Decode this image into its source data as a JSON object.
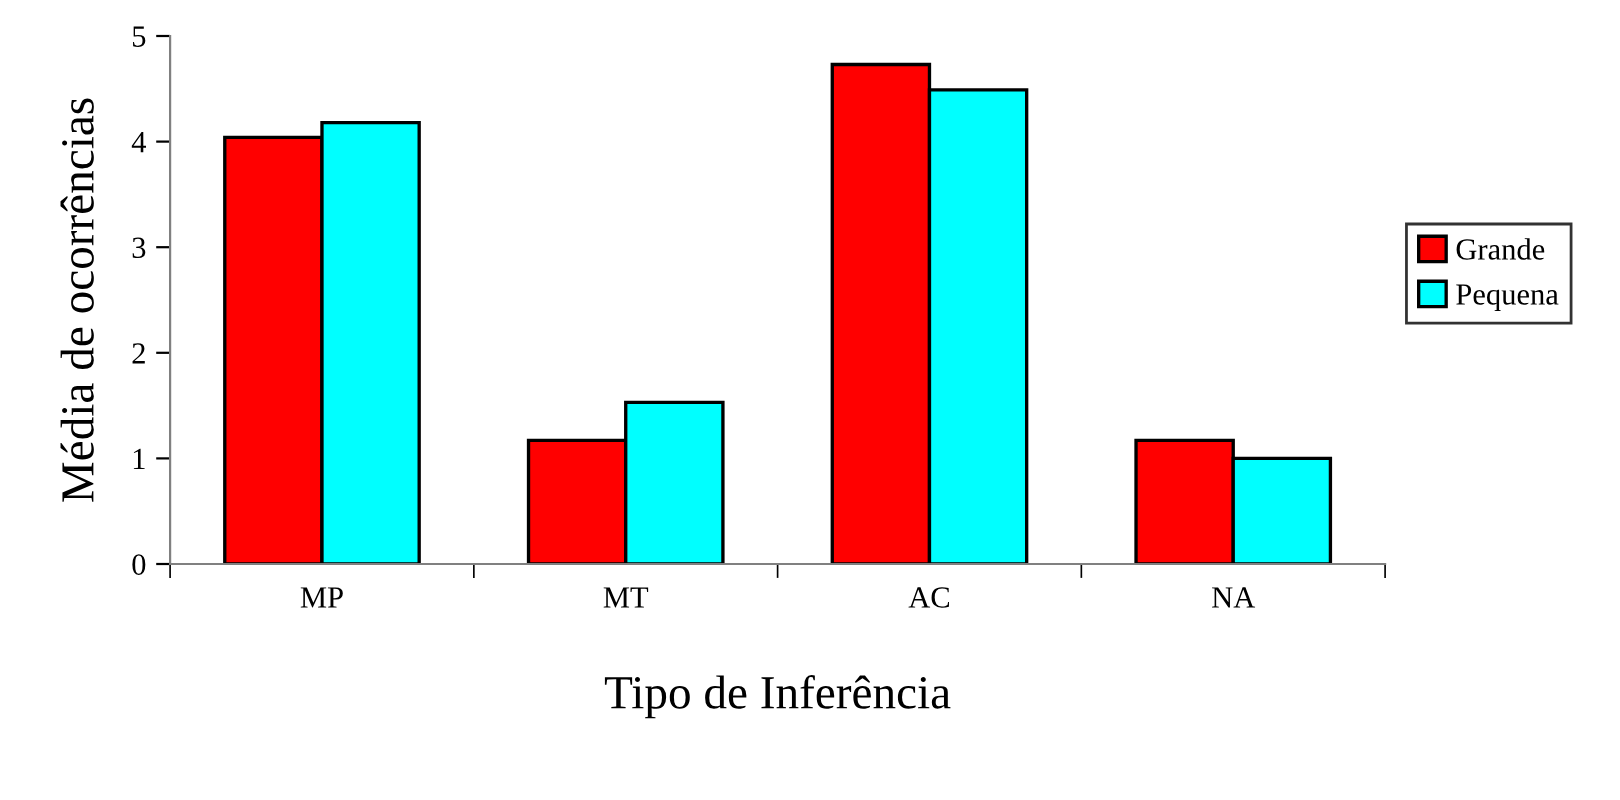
{
  "chart_data": {
    "type": "bar",
    "xlabel": "Tipo de Inferência",
    "ylabel": "Média de ocorrências",
    "categories": [
      "MP",
      "MT",
      "AC",
      "NA"
    ],
    "series": [
      {
        "name": "Grande",
        "color": "#ff0000",
        "values": [
          4.04,
          1.17,
          4.73,
          1.17
        ]
      },
      {
        "name": "Pequena",
        "color": "#00ffff",
        "values": [
          4.18,
          1.53,
          4.49,
          1.0
        ]
      }
    ],
    "ylim": [
      0,
      5
    ],
    "yticks": [
      0,
      1,
      2,
      3,
      4,
      5
    ],
    "grid": false,
    "legend": "right"
  }
}
